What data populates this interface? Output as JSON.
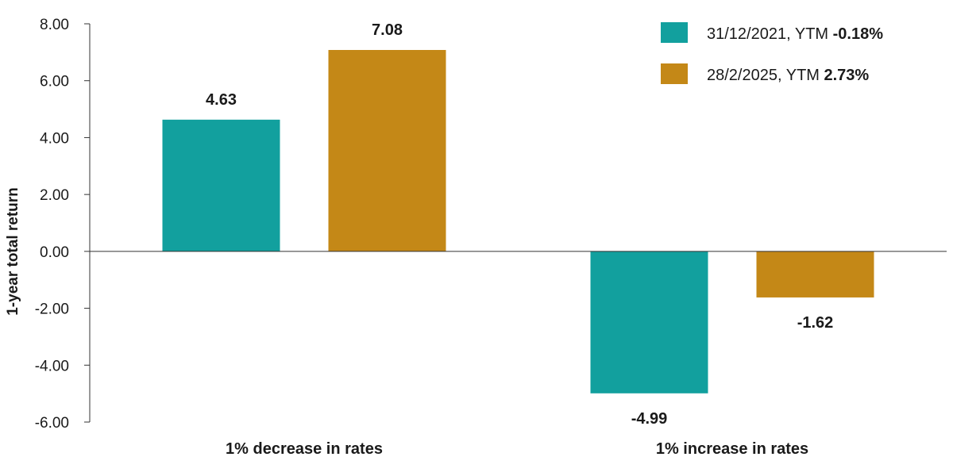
{
  "chart_data": {
    "type": "bar",
    "categories": [
      "1% decrease in rates",
      "1% increase in rates"
    ],
    "series": [
      {
        "name": "31/12/2021, YTM -0.18%",
        "legend_prefix": "31/12/2021, YTM ",
        "legend_bold": "-0.18%",
        "color": "#12A09E",
        "values": [
          4.63,
          -4.99
        ],
        "value_labels": [
          "4.63",
          "-4.99"
        ]
      },
      {
        "name": "28/2/2025, YTM 2.73%",
        "legend_prefix": "28/2/2025, YTM ",
        "legend_bold": "2.73%",
        "color": "#C48817",
        "values": [
          7.08,
          -1.62
        ],
        "value_labels": [
          "7.08",
          "-1.62"
        ]
      }
    ],
    "ylabel": "1-year total return",
    "xlabel": "",
    "ylim": [
      -6,
      8
    ],
    "yticks": [
      8,
      6,
      4,
      2,
      0,
      -2,
      -4,
      -6
    ],
    "ytick_labels": [
      "8.00",
      "6.00",
      "4.00",
      "2.00",
      "0.00",
      "-2.00",
      "-4.00",
      "-6.00"
    ],
    "grid": false,
    "legend_position": "top-right"
  }
}
